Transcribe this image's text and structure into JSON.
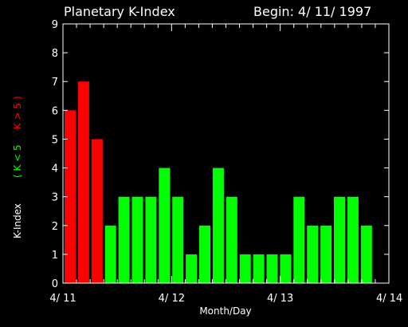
{
  "chart_data": {
    "type": "bar",
    "title": "Planetary K-Index",
    "begin_label": "Begin: 4/ 11/ 1997",
    "xlabel": "Month/Day",
    "ylabel": "K-Index",
    "legend": {
      "below": "( K < 5",
      "above": "K > 5 )",
      "threshold": 5
    },
    "ylim": [
      0,
      9
    ],
    "yticks": [
      "0",
      "1",
      "2",
      "3",
      "4",
      "5",
      "6",
      "7",
      "8",
      "9"
    ],
    "xlim": [
      0,
      24
    ],
    "xticks": [
      {
        "x": 0,
        "label": "4/ 11"
      },
      {
        "x": 8,
        "label": "4/ 12"
      },
      {
        "x": 16,
        "label": "4/ 13"
      },
      {
        "x": 24,
        "label": "4/ 14"
      }
    ],
    "values": [
      6,
      7,
      5,
      2,
      3,
      3,
      3,
      4,
      3,
      1,
      2,
      4,
      3,
      1,
      1,
      1,
      1,
      3,
      2,
      2,
      3,
      3,
      2
    ],
    "colors": {
      "low": "#00ff00",
      "high": "#ff0000",
      "axis": "#ffffff",
      "background": "#000000"
    }
  }
}
